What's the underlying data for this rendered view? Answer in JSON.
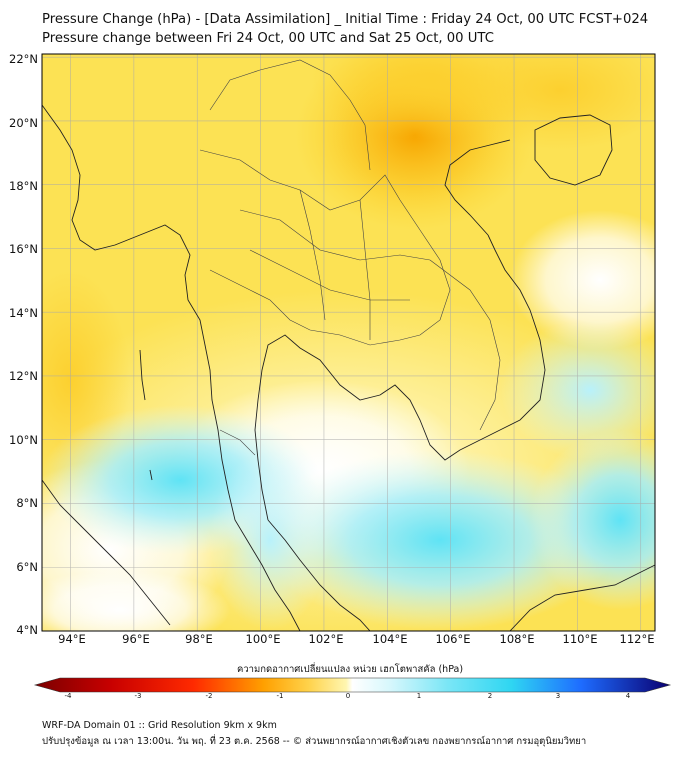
{
  "title_line1": "Pressure Change (hPa) - [Data Assimilation] _ Initial Time : Friday 24 Oct, 00 UTC FCST+024",
  "title_line2": "Pressure change between Fri 24 Oct, 00 UTC and Sat 25 Oct, 00 UTC",
  "lat_labels": [
    "22°N",
    "20°N",
    "18°N",
    "16°N",
    "14°N",
    "12°N",
    "10°N",
    "8°N",
    "6°N",
    "4°N"
  ],
  "lon_labels": [
    "94°E",
    "96°E",
    "98°E",
    "100°E",
    "102°E",
    "104°E",
    "106°E",
    "108°E",
    "110°E",
    "112°E"
  ],
  "colorbar": {
    "title": "ความกดอากาศเปลี่ยนแปลง หน่วย เฮกโตพาสคัล (hPa)",
    "ticks": [
      "-4",
      "-3",
      "-2",
      "-1",
      "0",
      "1",
      "2",
      "3",
      "4"
    ],
    "range": [
      -4,
      4
    ],
    "colors": {
      "neg_strong": "#7a0000",
      "neg_mid": "#ff2a00",
      "neg_weak": "#ffd24a",
      "near_neg": "#fff27a",
      "zero": "#ffffff",
      "pos_weak": "#bff4ff",
      "pos_mid": "#2fd6f2",
      "pos_strong": "#1e3cff",
      "pos_max": "#0a0070"
    }
  },
  "footer_line1": "WRF-DA Domain 01 :: Grid Resolution 9km x 9km",
  "footer_line2": "ปรับปรุงข้อมูล ณ เวลา 13:00น. วัน พฤ. ที่ 23 ต.ค. 2568 -- © ส่วนพยากรณ์อากาศเชิงตัวเลข กองพยากรณ์อากาศ กรมอุตุนิยมวิทยา"
}
